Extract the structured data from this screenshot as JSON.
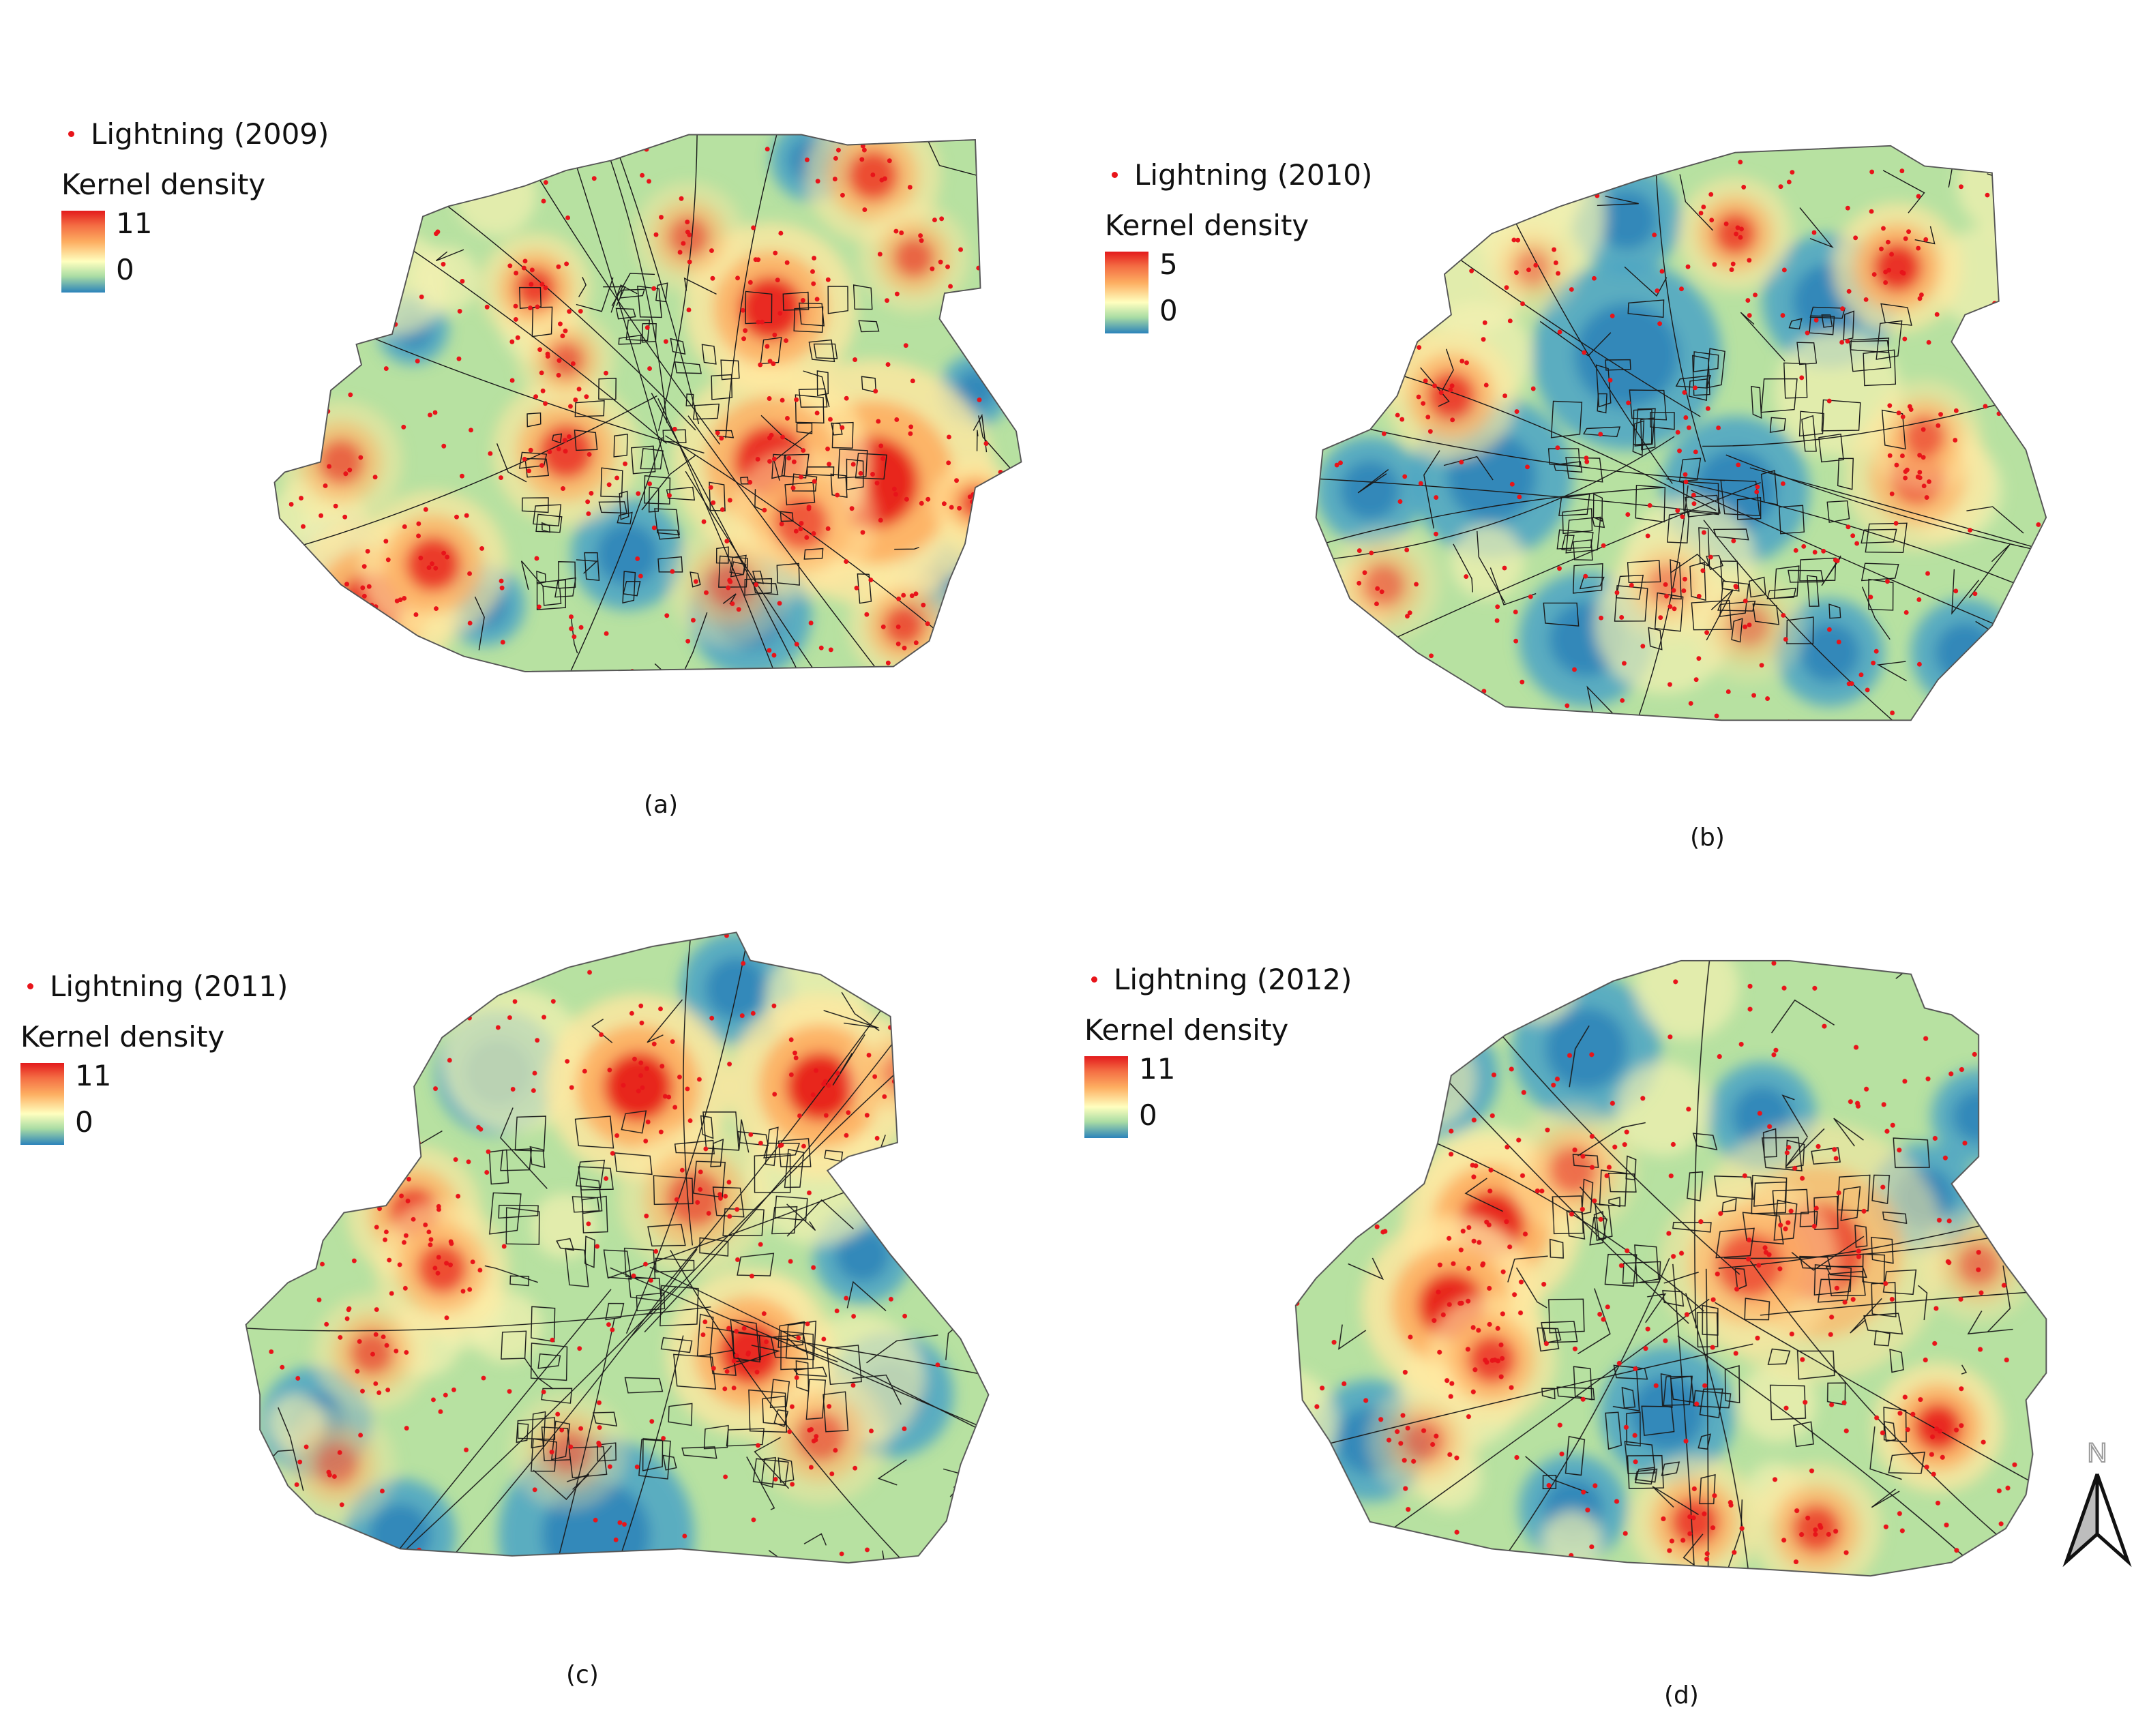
{
  "panels": [
    {
      "id": "a",
      "point_label": "Lightning (2009)",
      "density_title": "Kernel density",
      "max": "11",
      "min": "0",
      "caption": "(a)"
    },
    {
      "id": "b",
      "point_label": "Lightning (2010)",
      "density_title": "Kernel density",
      "max": "5",
      "min": "0",
      "caption": "(b)"
    },
    {
      "id": "c",
      "point_label": "Lightning (2011)",
      "density_title": "Kernel density",
      "max": "11",
      "min": "0",
      "caption": "(c)"
    },
    {
      "id": "d",
      "point_label": "Lightning (2012)",
      "density_title": "Kernel density",
      "max": "11",
      "min": "0",
      "caption": "(d)"
    }
  ],
  "north_arrow": {
    "label": "N"
  },
  "colors": {
    "high": "#e31a1c",
    "mid": "#ffffbf",
    "low": "#2b83ba",
    "point": "#e8141a",
    "roads": "#1a1a1a"
  }
}
